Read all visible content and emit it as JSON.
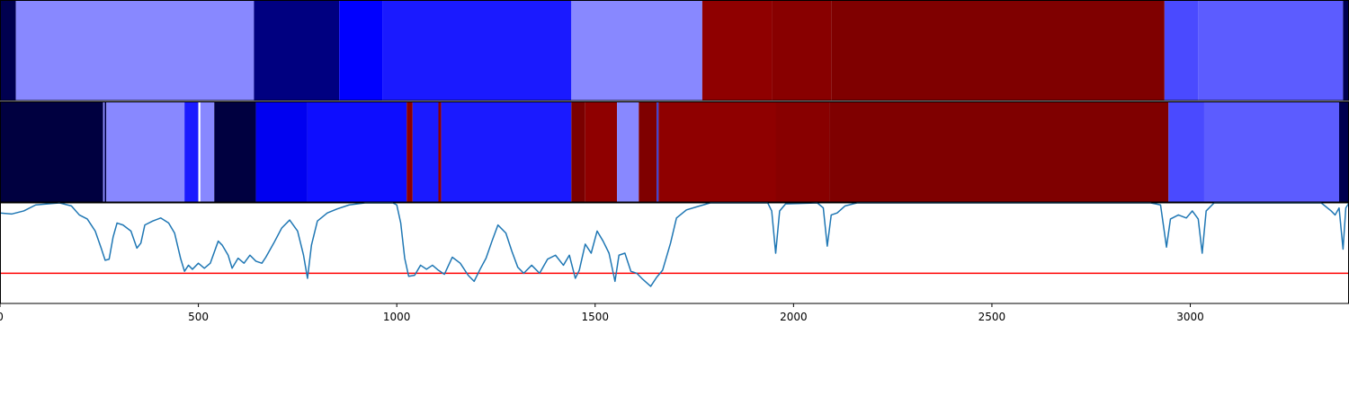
{
  "chart_data": [
    {
      "type": "heatmap",
      "title": "",
      "x_range": [
        0,
        3400
      ],
      "color_range": {
        "low": "#00004c",
        "mid": "#ffffff",
        "high": "#7f0000"
      },
      "segments": [
        {
          "start": 0,
          "end": 40,
          "color": "#00004f"
        },
        {
          "start": 40,
          "end": 640,
          "color": "#8888ff"
        },
        {
          "start": 640,
          "end": 855,
          "color": "#000080"
        },
        {
          "start": 855,
          "end": 965,
          "color": "#0000ff"
        },
        {
          "start": 965,
          "end": 1440,
          "color": "#1a1aff"
        },
        {
          "start": 1440,
          "end": 1770,
          "color": "#8888ff"
        },
        {
          "start": 1770,
          "end": 1945,
          "color": "#8f0000"
        },
        {
          "start": 1945,
          "end": 2095,
          "color": "#880000"
        },
        {
          "start": 2095,
          "end": 2935,
          "color": "#7f0000"
        },
        {
          "start": 2935,
          "end": 3020,
          "color": "#4a4aff"
        },
        {
          "start": 3020,
          "end": 3385,
          "color": "#5c5cff"
        },
        {
          "start": 3385,
          "end": 3400,
          "color": "#00004f"
        }
      ]
    },
    {
      "type": "heatmap",
      "title": "",
      "x_range": [
        0,
        3400
      ],
      "segments": [
        {
          "start": 0,
          "end": 260,
          "color": "#000040"
        },
        {
          "start": 260,
          "end": 264,
          "color": "#8888ff"
        },
        {
          "start": 264,
          "end": 268,
          "color": "#000040"
        },
        {
          "start": 268,
          "end": 272,
          "color": "#8888ff"
        },
        {
          "start": 272,
          "end": 465,
          "color": "#8888ff"
        },
        {
          "start": 465,
          "end": 500,
          "color": "#1a1aff"
        },
        {
          "start": 500,
          "end": 505,
          "color": "#ffffff"
        },
        {
          "start": 505,
          "end": 540,
          "color": "#8888ff"
        },
        {
          "start": 540,
          "end": 645,
          "color": "#000040"
        },
        {
          "start": 645,
          "end": 775,
          "color": "#0000f0"
        },
        {
          "start": 775,
          "end": 1025,
          "color": "#0d0dff"
        },
        {
          "start": 1025,
          "end": 1040,
          "color": "#8b0000"
        },
        {
          "start": 1040,
          "end": 1105,
          "color": "#1a1aff"
        },
        {
          "start": 1105,
          "end": 1112,
          "color": "#8b0000"
        },
        {
          "start": 1112,
          "end": 1440,
          "color": "#1a1aff"
        },
        {
          "start": 1440,
          "end": 1475,
          "color": "#7a0000"
        },
        {
          "start": 1475,
          "end": 1555,
          "color": "#8f0000"
        },
        {
          "start": 1555,
          "end": 1610,
          "color": "#8888ff"
        },
        {
          "start": 1610,
          "end": 1655,
          "color": "#7f0000"
        },
        {
          "start": 1655,
          "end": 1660,
          "color": "#3b3bcc"
        },
        {
          "start": 1660,
          "end": 1955,
          "color": "#8f0000"
        },
        {
          "start": 1955,
          "end": 2090,
          "color": "#880000"
        },
        {
          "start": 2090,
          "end": 2945,
          "color": "#7f0000"
        },
        {
          "start": 2945,
          "end": 3035,
          "color": "#4a4aff"
        },
        {
          "start": 3035,
          "end": 3375,
          "color": "#5c5cff"
        },
        {
          "start": 3375,
          "end": 3400,
          "color": "#00004f"
        }
      ]
    },
    {
      "type": "line",
      "title": "",
      "xlabel": "",
      "ylabel": "",
      "xlim": [
        0,
        3400
      ],
      "ylim": [
        0,
        1
      ],
      "x_ticks": [
        0,
        500,
        1000,
        1500,
        2000,
        2500,
        3000
      ],
      "threshold": {
        "value": 0.3,
        "color": "#ff0000"
      },
      "series": [
        {
          "color": "#1f77b4",
          "points": [
            [
              0,
              0.9
            ],
            [
              30,
              0.89
            ],
            [
              60,
              0.92
            ],
            [
              90,
              0.98
            ],
            [
              150,
              1.0
            ],
            [
              180,
              0.97
            ],
            [
              200,
              0.88
            ],
            [
              220,
              0.84
            ],
            [
              240,
              0.72
            ],
            [
              255,
              0.55
            ],
            [
              265,
              0.43
            ],
            [
              275,
              0.44
            ],
            [
              285,
              0.66
            ],
            [
              295,
              0.8
            ],
            [
              310,
              0.78
            ],
            [
              330,
              0.72
            ],
            [
              345,
              0.55
            ],
            [
              355,
              0.6
            ],
            [
              365,
              0.78
            ],
            [
              385,
              0.82
            ],
            [
              405,
              0.85
            ],
            [
              425,
              0.8
            ],
            [
              440,
              0.7
            ],
            [
              455,
              0.45
            ],
            [
              465,
              0.32
            ],
            [
              475,
              0.38
            ],
            [
              485,
              0.34
            ],
            [
              500,
              0.4
            ],
            [
              515,
              0.35
            ],
            [
              530,
              0.4
            ],
            [
              550,
              0.62
            ],
            [
              560,
              0.58
            ],
            [
              575,
              0.48
            ],
            [
              585,
              0.35
            ],
            [
              600,
              0.45
            ],
            [
              615,
              0.4
            ],
            [
              630,
              0.48
            ],
            [
              645,
              0.42
            ],
            [
              660,
              0.4
            ],
            [
              670,
              0.46
            ],
            [
              690,
              0.6
            ],
            [
              710,
              0.75
            ],
            [
              730,
              0.83
            ],
            [
              750,
              0.72
            ],
            [
              765,
              0.48
            ],
            [
              775,
              0.25
            ],
            [
              785,
              0.58
            ],
            [
              800,
              0.82
            ],
            [
              825,
              0.9
            ],
            [
              850,
              0.94
            ],
            [
              880,
              0.98
            ],
            [
              920,
              1.0
            ],
            [
              960,
              1.0
            ],
            [
              990,
              1.0
            ],
            [
              1000,
              0.98
            ],
            [
              1010,
              0.8
            ],
            [
              1020,
              0.45
            ],
            [
              1030,
              0.27
            ],
            [
              1045,
              0.28
            ],
            [
              1060,
              0.38
            ],
            [
              1075,
              0.34
            ],
            [
              1090,
              0.38
            ],
            [
              1105,
              0.33
            ],
            [
              1120,
              0.29
            ],
            [
              1140,
              0.46
            ],
            [
              1160,
              0.4
            ],
            [
              1180,
              0.28
            ],
            [
              1195,
              0.22
            ],
            [
              1210,
              0.34
            ],
            [
              1225,
              0.45
            ],
            [
              1240,
              0.62
            ],
            [
              1255,
              0.78
            ],
            [
              1275,
              0.7
            ],
            [
              1290,
              0.52
            ],
            [
              1305,
              0.36
            ],
            [
              1320,
              0.3
            ],
            [
              1340,
              0.38
            ],
            [
              1360,
              0.3
            ],
            [
              1380,
              0.44
            ],
            [
              1400,
              0.48
            ],
            [
              1420,
              0.38
            ],
            [
              1435,
              0.48
            ],
            [
              1450,
              0.25
            ],
            [
              1460,
              0.33
            ],
            [
              1475,
              0.59
            ],
            [
              1490,
              0.5
            ],
            [
              1505,
              0.72
            ],
            [
              1520,
              0.62
            ],
            [
              1535,
              0.5
            ],
            [
              1550,
              0.22
            ],
            [
              1560,
              0.48
            ],
            [
              1575,
              0.5
            ],
            [
              1590,
              0.32
            ],
            [
              1605,
              0.3
            ],
            [
              1620,
              0.24
            ],
            [
              1640,
              0.17
            ],
            [
              1655,
              0.26
            ],
            [
              1670,
              0.33
            ],
            [
              1690,
              0.6
            ],
            [
              1705,
              0.85
            ],
            [
              1730,
              0.93
            ],
            [
              1755,
              0.96
            ],
            [
              1790,
              1.0
            ],
            [
              1900,
              1.0
            ],
            [
              1935,
              1.0
            ],
            [
              1945,
              0.92
            ],
            [
              1955,
              0.5
            ],
            [
              1965,
              0.92
            ],
            [
              1980,
              0.99
            ],
            [
              2060,
              1.0
            ],
            [
              2075,
              0.95
            ],
            [
              2085,
              0.57
            ],
            [
              2095,
              0.88
            ],
            [
              2110,
              0.9
            ],
            [
              2130,
              0.97
            ],
            [
              2160,
              1.0
            ],
            [
              2900,
              1.0
            ],
            [
              2925,
              0.98
            ],
            [
              2940,
              0.56
            ],
            [
              2950,
              0.84
            ],
            [
              2970,
              0.88
            ],
            [
              2990,
              0.85
            ],
            [
              3005,
              0.92
            ],
            [
              3020,
              0.84
            ],
            [
              3030,
              0.5
            ],
            [
              3040,
              0.92
            ],
            [
              3060,
              1.0
            ],
            [
              3330,
              1.0
            ],
            [
              3355,
              0.92
            ],
            [
              3365,
              0.88
            ],
            [
              3375,
              0.95
            ],
            [
              3385,
              0.54
            ],
            [
              3392,
              0.95
            ],
            [
              3400,
              1.0
            ]
          ]
        }
      ]
    }
  ]
}
